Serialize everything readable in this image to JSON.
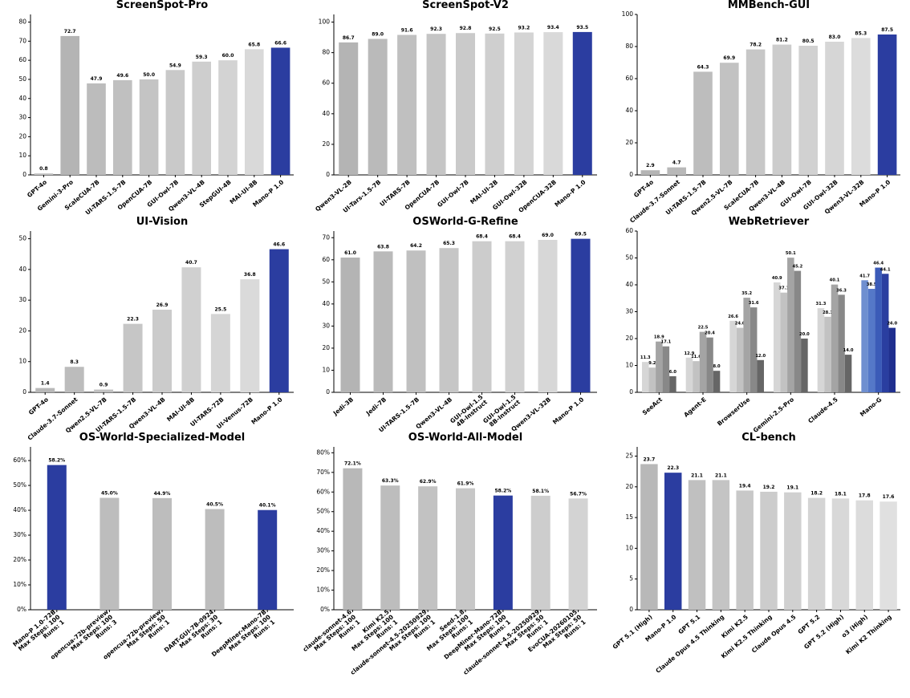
{
  "chart_data": [
    {
      "type": "bar",
      "title": "ScreenSpot-Pro",
      "categories": [
        "GPT-4o",
        "Gemini-3-Pro",
        "ScaleCUA-7B",
        "UI-TARS-1.5-7B",
        "OpenCUA-7B",
        "GUI-Owl-7B",
        "Qwen3-VL-4B",
        "StepGUI-4B",
        "MAI-UI-8B",
        "Mano-P 1.0"
      ],
      "values": [
        0.8,
        72.7,
        47.9,
        49.6,
        50.0,
        54.9,
        59.3,
        60.0,
        65.8,
        66.6
      ],
      "value_labels": [
        "0.8",
        "72.7",
        "47.9",
        "49.6",
        "50.0",
        "54.9",
        "59.3",
        "60.0",
        "65.8",
        "66.6"
      ],
      "colors": [
        "#c4c4c4",
        "#b4b4b4",
        "#bcbcbc",
        "#c0c0c0",
        "#c4c4c4",
        "#c9c9c9",
        "#cecece",
        "#d3d3d3",
        "#d9d9d9",
        "#2b3da0"
      ],
      "ylim": [
        0,
        84
      ],
      "yticks": [
        0,
        10,
        20,
        30,
        40,
        50,
        60,
        70,
        80
      ]
    },
    {
      "type": "bar",
      "title": "ScreenSpot-V2",
      "categories": [
        "Qwen3-VL-2B",
        "UI-Tars-1.5-7B",
        "UI-TARS-7B",
        "OpenCUA-7B",
        "GUI-Owl-7B",
        "MAI-UI-2B",
        "GUI-Owl-32B",
        "OpenCUA-32B",
        "Mano-P 1.0"
      ],
      "values": [
        86.7,
        89.0,
        91.6,
        92.3,
        92.8,
        92.5,
        93.2,
        93.4,
        93.5
      ],
      "value_labels": [
        "86.7",
        "89.0",
        "91.6",
        "92.3",
        "92.8",
        "92.5",
        "93.2",
        "93.4",
        "93.5"
      ],
      "colors": [
        "#b4b4b4",
        "#bababa",
        "#c0c0c0",
        "#c5c5c5",
        "#cacaca",
        "#cfcfcf",
        "#d4d4d4",
        "#d9d9d9",
        "#2b3da0"
      ],
      "ylim": [
        0,
        105
      ],
      "yticks": [
        0,
        20,
        40,
        60,
        80,
        100
      ]
    },
    {
      "type": "bar",
      "title": "MMBench-GUI",
      "categories": [
        "GPT-4o",
        "Claude-3.7-Sonnet",
        "UI-TARS-1.5-7B",
        "Qwen2.5-VL-7B",
        "ScaleCUA-7B",
        "Qwen3-VL-4B",
        "GUI-Owl-7B",
        "GUI-Owl-32B",
        "Qwen3-VL-32B",
        "Mano-P 1.0"
      ],
      "values": [
        2.9,
        4.7,
        64.3,
        69.9,
        78.2,
        81.2,
        80.5,
        83.0,
        85.3,
        87.5
      ],
      "value_labels": [
        "2.9",
        "4.7",
        "64.3",
        "69.9",
        "78.2",
        "81.2",
        "80.5",
        "83.0",
        "85.3",
        "87.5"
      ],
      "colors": [
        "#b4b4b4",
        "#b8b8b8",
        "#bdbdbd",
        "#c2c2c2",
        "#c7c7c7",
        "#cccccc",
        "#d1d1d1",
        "#d6d6d6",
        "#dcdcdc",
        "#2b3da0"
      ],
      "ylim": [
        0,
        100
      ],
      "yticks": [
        0,
        20,
        40,
        60,
        80,
        100
      ]
    },
    {
      "type": "bar",
      "title": "UI-Vision",
      "categories": [
        "GPT-4o",
        "Claude-3.7-Sonnet",
        "Qwen2.5-VL-7B",
        "UI-TARS-1.5-7B",
        "Qwen3-VL-4B",
        "MAI-UI-8B",
        "UI-TARS-72B",
        "UI-Venus-72B",
        "Mano-P 1.0"
      ],
      "values": [
        1.4,
        8.3,
        0.9,
        22.3,
        26.9,
        40.7,
        25.5,
        36.8,
        46.6
      ],
      "value_labels": [
        "1.4",
        "8.3",
        "0.9",
        "22.3",
        "26.9",
        "40.7",
        "25.5",
        "36.8",
        "46.6"
      ],
      "colors": [
        "#b8b8b8",
        "#bcbcbc",
        "#c1c1c1",
        "#c6c6c6",
        "#cbcbcb",
        "#d0d0d0",
        "#d5d5d5",
        "#dadada",
        "#2b3da0"
      ],
      "ylim": [
        0,
        52.5
      ],
      "yticks": [
        0,
        10,
        20,
        30,
        40,
        50
      ]
    },
    {
      "type": "bar",
      "title": "OSWorld-G-Refine",
      "categories": [
        "Jedi-3B",
        "Jedi-7B",
        "UI-TARS-1.5-7B",
        "Qwen3-VL-4B",
        "GUI-Owl-1.5\n4B-Instruct",
        "GUI-Owl-1.5\n8B-Instruct",
        "Qwen3-VL-32B",
        "Mano-P 1.0"
      ],
      "values": [
        61.0,
        63.8,
        64.2,
        65.3,
        68.4,
        68.4,
        69.0,
        69.5
      ],
      "value_labels": [
        "61.0",
        "63.8",
        "64.2",
        "65.3",
        "68.4",
        "68.4",
        "69.0",
        "69.5"
      ],
      "colors": [
        "#b4b4b4",
        "#bababa",
        "#c0c0c0",
        "#c6c6c6",
        "#cccccc",
        "#d1d1d1",
        "#d7d7d7",
        "#2b3da0"
      ],
      "ylim": [
        0,
        73
      ],
      "yticks": [
        0,
        10,
        20,
        30,
        40,
        50,
        60,
        70
      ]
    },
    {
      "type": "grouped_bar",
      "title": "WebRetriever",
      "categories": [
        "SeeAct",
        "Agent-E",
        "BrowserUse",
        "Gemini-2.5-Pro",
        "Claude-4.5",
        "Mano-G"
      ],
      "series": [
        {
          "values": [
            11.3,
            12.9,
            26.6,
            40.9,
            31.3,
            41.7
          ],
          "value_labels": [
            "11.3",
            "12.9",
            "26.6",
            "40.9",
            "31.3",
            "41.7"
          ],
          "colors": [
            "#d6d6d6",
            "#d6d6d6",
            "#d6d6d6",
            "#d6d6d6",
            "#d6d6d6",
            "#6f8fd0"
          ]
        },
        {
          "values": [
            9.2,
            11.6,
            24.0,
            37.1,
            28.1,
            38.5
          ],
          "value_labels": [
            "9.2",
            "11.6",
            "24.0",
            "37.1",
            "28.1",
            "38.5"
          ],
          "colors": [
            "#c2c2c2",
            "#c2c2c2",
            "#c2c2c2",
            "#c2c2c2",
            "#c2c2c2",
            "#5578c8"
          ]
        },
        {
          "values": [
            18.9,
            22.5,
            35.2,
            50.1,
            40.1,
            46.4
          ],
          "value_labels": [
            "18.9",
            "22.5",
            "35.2",
            "50.1",
            "40.1",
            "46.4"
          ],
          "colors": [
            "#a4a4a4",
            "#a4a4a4",
            "#a4a4a4",
            "#a4a4a4",
            "#a4a4a4",
            "#3b5bb8"
          ]
        },
        {
          "values": [
            17.1,
            20.4,
            31.6,
            45.2,
            36.3,
            44.1
          ],
          "value_labels": [
            "17.1",
            "20.4",
            "31.6",
            "45.2",
            "36.3",
            "44.1"
          ],
          "colors": [
            "#888888",
            "#888888",
            "#888888",
            "#888888",
            "#888888",
            "#2a3ea0"
          ]
        },
        {
          "values": [
            6.0,
            8.0,
            12.0,
            20.0,
            14.0,
            24.0
          ],
          "value_labels": [
            "6.0",
            "8.0",
            "12.0",
            "20.0",
            "14.0",
            "24.0"
          ],
          "colors": [
            "#666666",
            "#666666",
            "#666666",
            "#666666",
            "#666666",
            "#1f2f8f"
          ]
        }
      ],
      "ylim": [
        0,
        60
      ],
      "yticks": [
        0,
        10,
        20,
        30,
        40,
        50,
        60
      ]
    },
    {
      "type": "bar",
      "title": "OS-World-Specialized-Model",
      "categories": [
        "Mano-P 1.0-72B\nMax Steps: 100\nRuns: 1",
        "opencua-72b-preview\nMax Steps: 100\nRuns: 3",
        "opencua-72b-preview\nMax Steps: 50\nRuns: 1",
        "DART-GUI-7B-0924\nMax Steps: 30\nRuns: 1",
        "DeepMiner-Mano-7B\nMax Steps: 100\nRuns: 1"
      ],
      "values": [
        58.2,
        45.0,
        44.9,
        40.5,
        40.1
      ],
      "value_labels": [
        "58.2%",
        "45.0%",
        "44.9%",
        "40.5%",
        "40.1%"
      ],
      "colors": [
        "#2b3da0",
        "#bdbdbd",
        "#bdbdbd",
        "#bdbdbd",
        "#2b3da0"
      ],
      "ylim": [
        0,
        65.5
      ],
      "yticks": [
        {
          "value": 0,
          "label": "0%"
        },
        {
          "value": 10,
          "label": "10%"
        },
        {
          "value": 20,
          "label": "20%"
        },
        {
          "value": 30,
          "label": "30%"
        },
        {
          "value": 40,
          "label": "40%"
        },
        {
          "value": 50,
          "label": "50%"
        },
        {
          "value": 60,
          "label": "60%"
        }
      ]
    },
    {
      "type": "bar",
      "title": "OS-World-All-Model",
      "categories": [
        "claude-sonnet-4.6\nMax Steps: 100\nRuns: 1",
        "Kimi K2.5\nMax Steps: 100\nRuns: 1",
        "claude-sonnet-4.5-20250929\nMax Steps: 100\nRuns: 1",
        "Seed-1.8\nMax Steps: 100\nRuns: 1",
        "DeepMiner-Mano-72B\nMax Steps: 100\nRuns: 1",
        "claude-sonnet-4.5-20250929\nMax Steps: 50\nRuns: 1",
        "EvoCUA-20260105\nMax Steps: 50\nRuns: 1"
      ],
      "values": [
        72.1,
        63.3,
        62.9,
        61.9,
        58.2,
        58.1,
        56.7
      ],
      "value_labels": [
        "72.1%",
        "63.3%",
        "62.9%",
        "61.9%",
        "58.2%",
        "58.1%",
        "56.7%"
      ],
      "colors": [
        "#b8b8b8",
        "#bdbdbd",
        "#c2c2c2",
        "#c7c7c7",
        "#2b3da0",
        "#cdcdcd",
        "#d3d3d3"
      ],
      "ylim": [
        0,
        83
      ],
      "yticks": [
        {
          "value": 0,
          "label": "0%"
        },
        {
          "value": 10,
          "label": "10%"
        },
        {
          "value": 20,
          "label": "20%"
        },
        {
          "value": 30,
          "label": "30%"
        },
        {
          "value": 40,
          "label": "40%"
        },
        {
          "value": 50,
          "label": "50%"
        },
        {
          "value": 60,
          "label": "60%"
        },
        {
          "value": 70,
          "label": "70%"
        },
        {
          "value": 80,
          "label": "80%"
        }
      ]
    },
    {
      "type": "bar",
      "title": "CL-bench",
      "categories": [
        "GPT 5.1 (High)",
        "Mano-P 1.0",
        "GPT 5.1",
        "Claude Opus 4.5 Thinking",
        "Kimi K2.5",
        "Kimi K2.5 Thinking",
        "Claude Opus 4.5",
        "GPT 5.2",
        "GPT 5.2 (High)",
        "o3 (High)",
        "Kimi K2 Thinking"
      ],
      "values": [
        23.7,
        22.3,
        21.1,
        21.1,
        19.4,
        19.2,
        19.1,
        18.2,
        18.1,
        17.8,
        17.6
      ],
      "value_labels": [
        "23.7",
        "22.3",
        "21.1",
        "21.1",
        "19.4",
        "19.2",
        "19.1",
        "18.2",
        "18.1",
        "17.8",
        "17.6"
      ],
      "colors": [
        "#b8b8b8",
        "#2b3da0",
        "#c0c0c0",
        "#c4c4c4",
        "#c8c8c8",
        "#cccccc",
        "#d0d0d0",
        "#d4d4d4",
        "#d8d8d8",
        "#dcdcdc",
        "#e0e0e0"
      ],
      "ylim": [
        0,
        26.5
      ],
      "yticks": [
        0,
        5,
        10,
        15,
        20,
        25
      ]
    }
  ]
}
